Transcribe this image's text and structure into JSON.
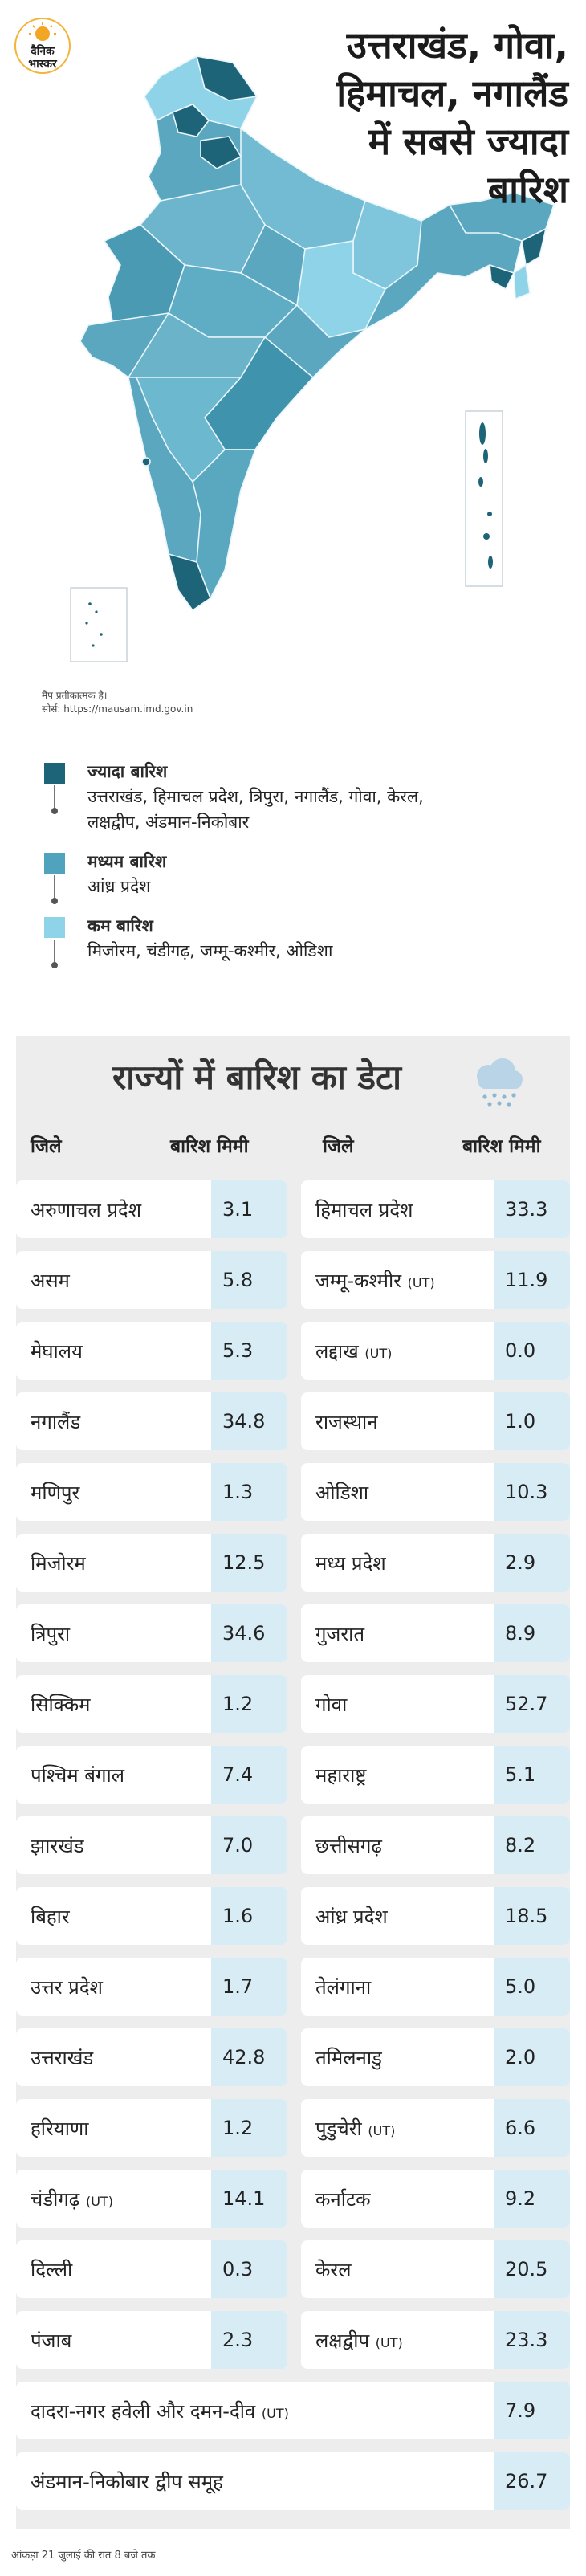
{
  "brand": {
    "name_line1": "दैनिक",
    "name_line2": "भास्कर"
  },
  "headline": {
    "line1": "उत्तराखंड, गोवा,",
    "line2": "हिमाचल, नगालैंड",
    "line3": "में सबसे ज्यादा",
    "line4": "बारिश"
  },
  "map_note": {
    "line1": "मैप प्रतीकात्मक है।",
    "line2": "सोर्स: https://mausam.imd.gov.in"
  },
  "colors": {
    "high": "#1e6478",
    "medium": "#4fa3bd",
    "low": "#8fd3e8",
    "panel": "#ededee",
    "value_bg": "#d8ecf6"
  },
  "legend": [
    {
      "title": "ज्यादा बारिश",
      "items_line1": "उत्तराखंड, हिमाचल प्रदेश, त्रिपुरा, नगालैंड, गोवा, केरल,",
      "items_line2": "लक्षद्वीप, अंडमान-निकोबार"
    },
    {
      "title": "मध्यम बारिश",
      "items_line1": "आंध्र प्रदेश",
      "items_line2": ""
    },
    {
      "title": "कम बारिश",
      "items_line1": "मिजोरम, चंडीगढ़, जम्मू-कश्मीर, ओडिशा",
      "items_line2": ""
    }
  ],
  "table": {
    "title": "राज्यों में बारिश का डेटा",
    "icon": "rain-cloud-icon",
    "header_col_name": "जिले",
    "header_col_value": "बारिश मिमी",
    "left": [
      {
        "name": "अरुणाचल प्रदेश",
        "value": "3.1"
      },
      {
        "name": "असम",
        "value": "5.8"
      },
      {
        "name": "मेघालय",
        "value": "5.3"
      },
      {
        "name": "नगालैंड",
        "value": "34.8"
      },
      {
        "name": "मणिपुर",
        "value": "1.3"
      },
      {
        "name": "मिजोरम",
        "value": "12.5"
      },
      {
        "name": "त्रिपुरा",
        "value": "34.6"
      },
      {
        "name": "सिक्किम",
        "value": "1.2"
      },
      {
        "name": "पश्चिम बंगाल",
        "value": "7.4"
      },
      {
        "name": "झारखंड",
        "value": "7.0"
      },
      {
        "name": "बिहार",
        "value": "1.6"
      },
      {
        "name": "उत्तर प्रदेश",
        "value": "1.7"
      },
      {
        "name": "उत्तराखंड",
        "value": "42.8"
      },
      {
        "name": "हरियाणा",
        "value": "1.2"
      },
      {
        "name": "चंडीगढ़",
        "tag": "(UT)",
        "value": "14.1"
      },
      {
        "name": "दिल्ली",
        "value": "0.3"
      },
      {
        "name": "पंजाब",
        "value": "2.3"
      }
    ],
    "right": [
      {
        "name": "हिमाचल प्रदेश",
        "value": "33.3"
      },
      {
        "name": "जम्मू-कश्मीर",
        "tag": "(UT)",
        "value": "11.9"
      },
      {
        "name": "लद्दाख",
        "tag": "(UT)",
        "value": "0.0"
      },
      {
        "name": "राजस्थान",
        "value": "1.0"
      },
      {
        "name": "ओडिशा",
        "value": "10.3"
      },
      {
        "name": "मध्य प्रदेश",
        "value": "2.9"
      },
      {
        "name": "गुजरात",
        "value": "8.9"
      },
      {
        "name": "गोवा",
        "value": "52.7"
      },
      {
        "name": "महाराष्ट्र",
        "value": "5.1"
      },
      {
        "name": "छत्तीसगढ़",
        "value": "8.2"
      },
      {
        "name": "आंध्र प्रदेश",
        "value": "18.5"
      },
      {
        "name": "तेलंगाना",
        "value": "5.0"
      },
      {
        "name": "तमिलनाडु",
        "value": "2.0"
      },
      {
        "name": "पुडुचेरी",
        "tag": "(UT)",
        "value": "6.6"
      },
      {
        "name": "कर्नाटक",
        "value": "9.2"
      },
      {
        "name": "केरल",
        "value": "20.5"
      },
      {
        "name": "लक्षद्वीप",
        "tag": "(UT)",
        "value": "23.3"
      }
    ],
    "wide": [
      {
        "name": "दादरा-नगर हवेली और दमन-दीव",
        "tag": "(UT)",
        "value": "7.9"
      },
      {
        "name": "अंडमान-निकोबार द्वीप समूह",
        "value": "26.7"
      }
    ]
  },
  "footer": "आंकड़ा 21 जुलाई की रात 8 बजे तक"
}
